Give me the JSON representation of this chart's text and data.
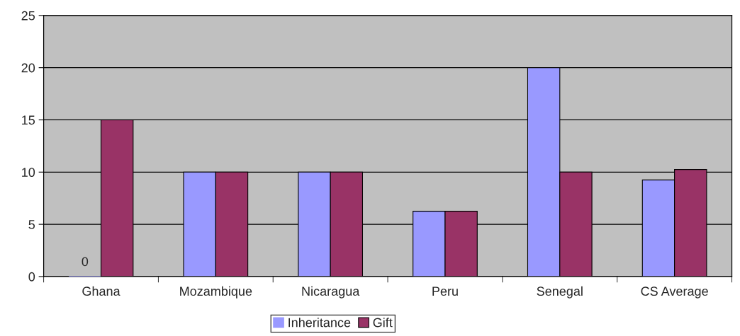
{
  "chart_data": {
    "type": "bar",
    "categories": [
      "Ghana",
      "Mozambique",
      "Nicaragua",
      "Peru",
      "Senegal",
      "CS Average"
    ],
    "series": [
      {
        "name": "Inheritance",
        "color": "#9999ff",
        "values": [
          0,
          10,
          10,
          6.25,
          20,
          9.25
        ],
        "value_labels": [
          "0",
          null,
          null,
          null,
          null,
          null
        ]
      },
      {
        "name": "Gift",
        "color": "#993366",
        "values": [
          15,
          10,
          10,
          6.25,
          10,
          10.25
        ]
      }
    ],
    "ylim": [
      0,
      25
    ],
    "yticks": [
      0,
      5,
      10,
      15,
      20,
      25
    ],
    "grid": "y",
    "legend": "bottom"
  }
}
